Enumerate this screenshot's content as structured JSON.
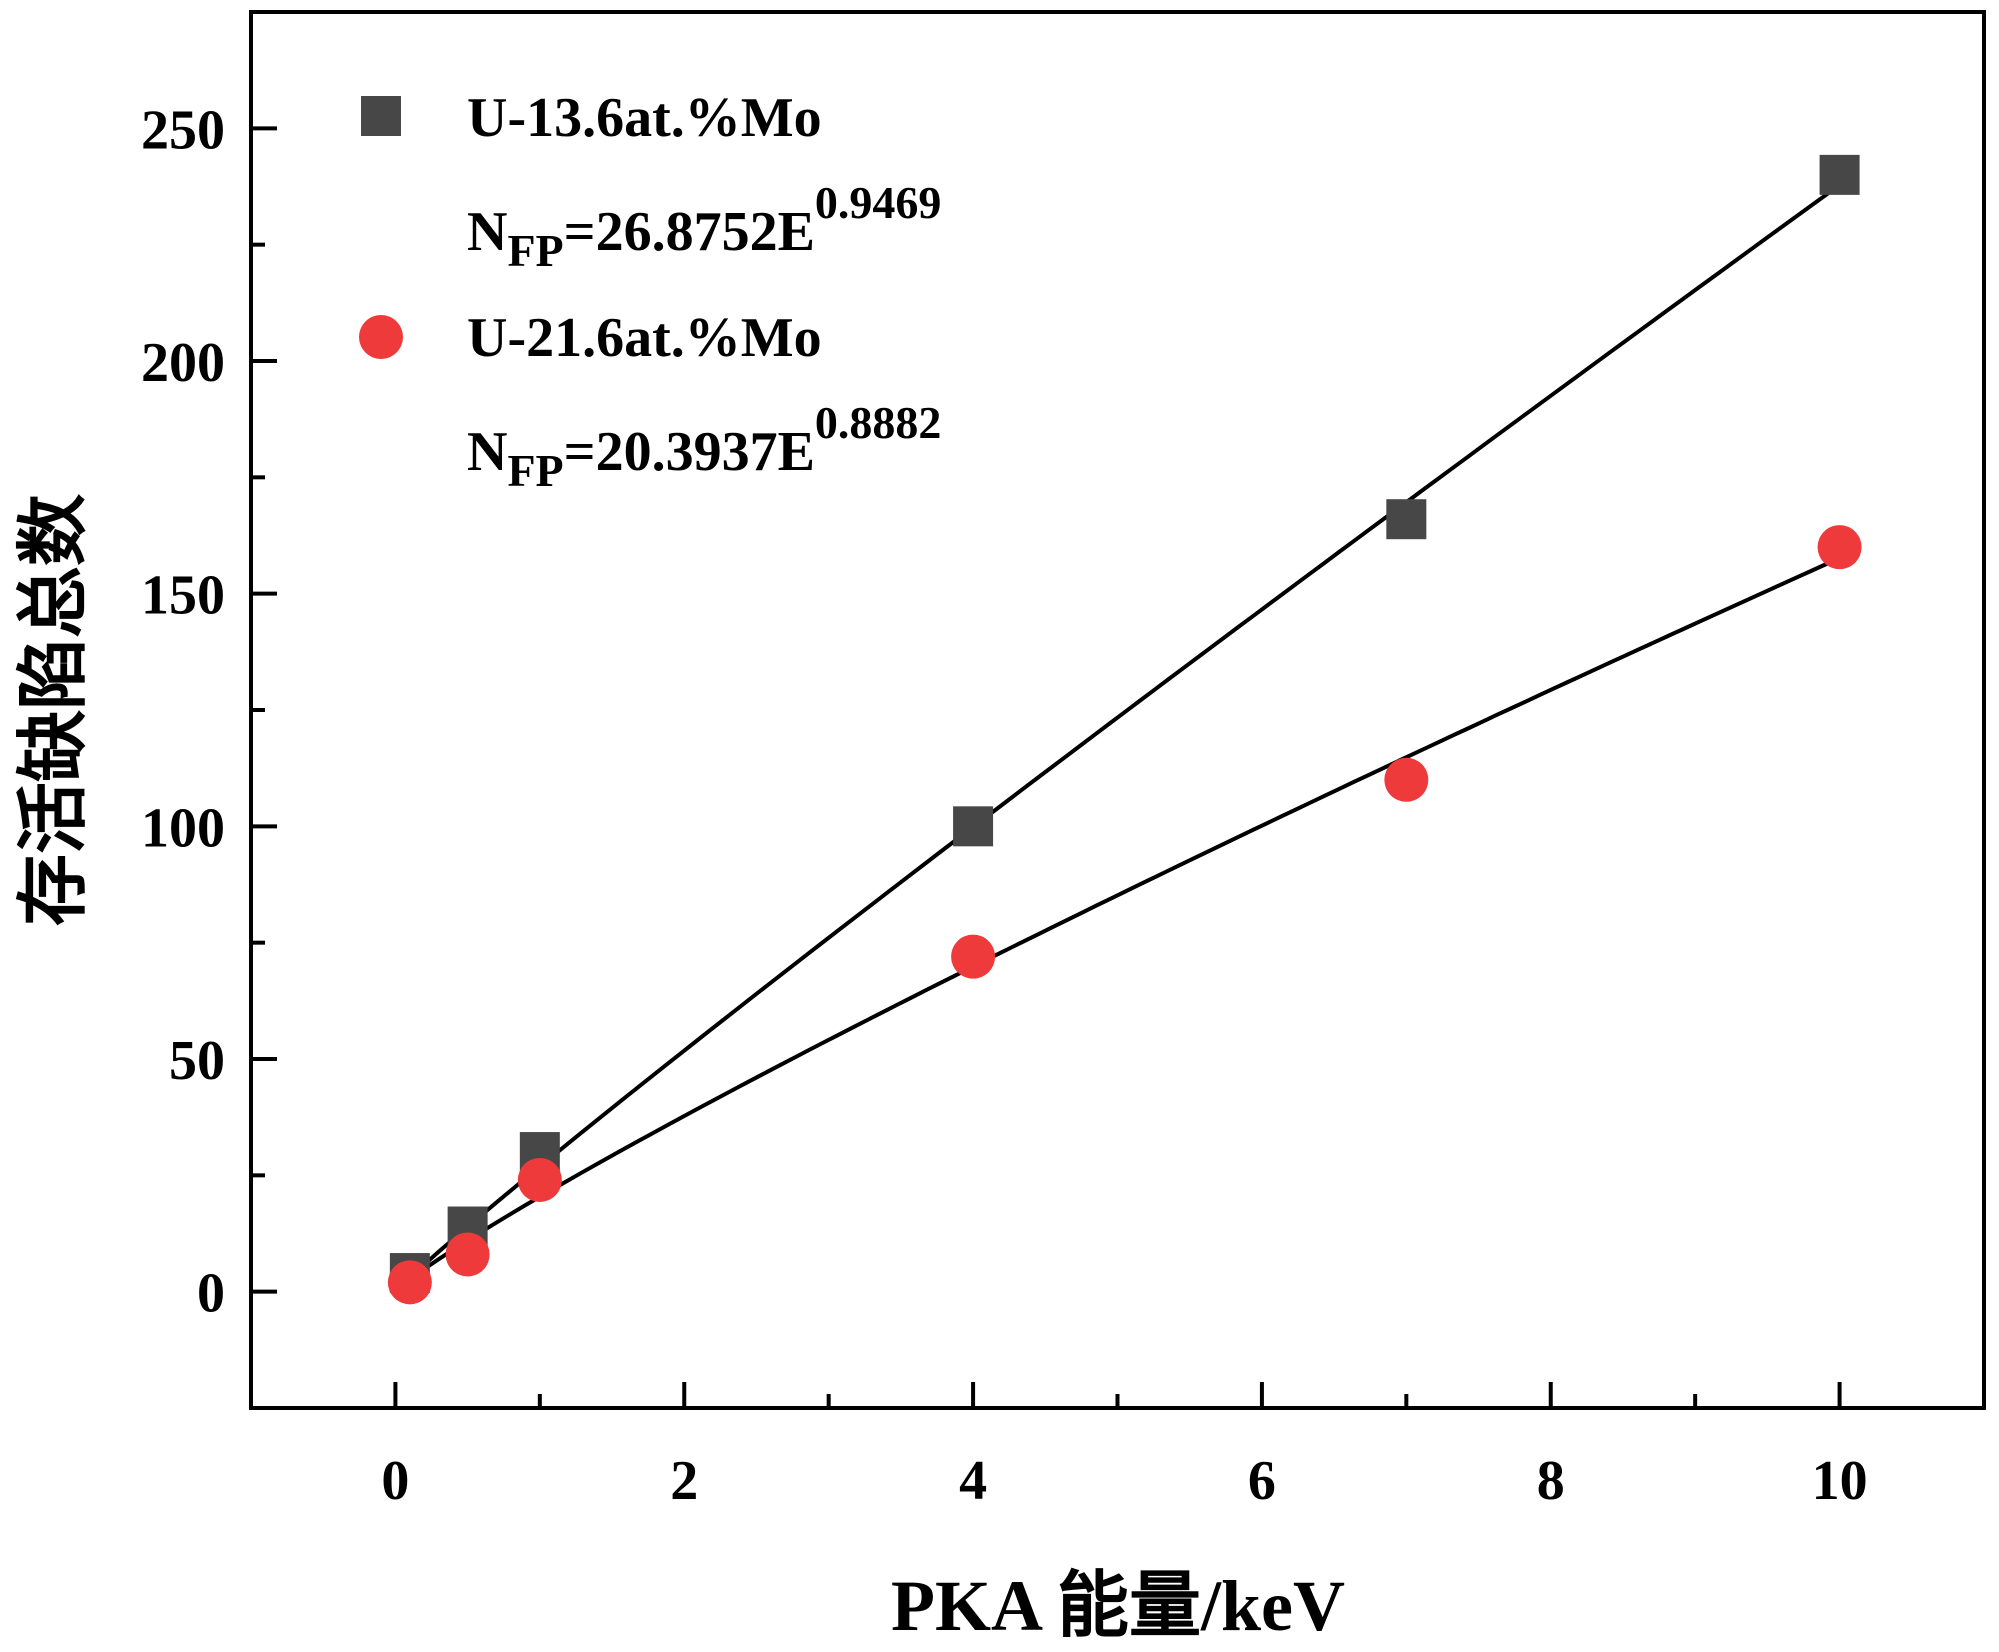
{
  "chart_data": {
    "type": "scatter",
    "title": "",
    "xlabel": "PKA 能量/keV",
    "ylabel": "存活缺陷总数",
    "xlim": [
      -1,
      11
    ],
    "ylim": [
      -25,
      275
    ],
    "xticks": [
      0,
      2,
      4,
      6,
      8,
      10
    ],
    "xtick_labels": [
      "0",
      "2",
      "4",
      "6",
      "8",
      "10"
    ],
    "yticks": [
      0,
      50,
      100,
      150,
      200,
      250
    ],
    "ytick_labels": [
      "0",
      "50",
      "100",
      "150",
      "200",
      "250"
    ],
    "legend_position": "top-left",
    "series": [
      {
        "name": "U-13.6at.%Mo",
        "marker": "square",
        "color": "#474747",
        "x": [
          0.1,
          0.5,
          1,
          4,
          7,
          10
        ],
        "y": [
          4,
          14,
          30,
          100,
          166,
          240
        ],
        "fit": {
          "label_prefix": "N",
          "label_sub": "FP",
          "label_eq": "=26.8752E",
          "label_exp": "0.9469",
          "coef": 26.8752,
          "exp": 0.9469
        }
      },
      {
        "name": "U-21.6at.%Mo",
        "marker": "circle",
        "color": "#ee3a3a",
        "x": [
          0.1,
          0.5,
          1,
          4,
          7,
          10
        ],
        "y": [
          2,
          8,
          24,
          72,
          110,
          160
        ],
        "fit": {
          "label_prefix": "N",
          "label_sub": "FP",
          "label_eq": "=20.3937E",
          "label_exp": "0.8882",
          "coef": 20.3937,
          "exp": 0.8882
        }
      }
    ]
  }
}
